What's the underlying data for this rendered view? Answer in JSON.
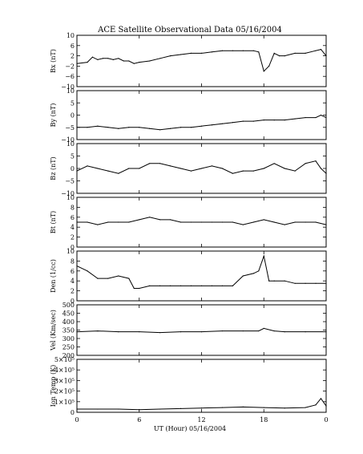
{
  "title": "ACE Satellite Observational Data   05/16/2004",
  "x_axis": {
    "label": "UT (Hour)   05/16/2004",
    "ticks": [
      "0",
      "6",
      "12",
      "18",
      "0"
    ]
  },
  "chart_data": [
    {
      "type": "line",
      "ylabel": "Bx (nT)",
      "ylim": [
        -10,
        10
      ],
      "yticks": [
        10,
        6,
        2,
        -2,
        -6,
        -10
      ],
      "ytick_labels": [
        "10",
        "6",
        "2",
        "−2",
        "−6",
        "−10"
      ],
      "x": [
        0,
        1,
        1.5,
        2,
        2.5,
        3,
        3.5,
        4,
        4.5,
        5,
        5.5,
        6,
        7,
        8,
        9,
        10,
        11,
        12,
        13,
        14,
        15,
        16,
        17,
        17.5,
        18,
        18.5,
        19,
        19.5,
        20,
        21,
        22,
        23,
        23.5,
        24
      ],
      "series": [
        {
          "values": [
            -1,
            -0.5,
            1.5,
            0.5,
            1,
            1,
            0.5,
            1,
            0,
            0,
            -1,
            -0.5,
            0,
            1,
            2,
            2.5,
            3,
            3,
            3.5,
            4,
            4,
            4,
            4,
            3.5,
            -4,
            -2,
            3,
            2,
            2,
            3,
            3,
            4,
            4.5,
            2
          ]
        }
      ]
    },
    {
      "type": "line",
      "ylabel": "By (nT)",
      "ylim": [
        -10,
        10
      ],
      "yticks": [
        10,
        5,
        0,
        -5,
        -10
      ],
      "ytick_labels": [
        "10",
        "5",
        "0",
        "−5",
        "−10"
      ],
      "x": [
        0,
        1,
        2,
        3,
        4,
        5,
        6,
        7,
        8,
        9,
        10,
        11,
        12,
        13,
        14,
        15,
        16,
        17,
        18,
        19,
        20,
        21,
        22,
        23,
        23.5,
        24
      ],
      "series": [
        {
          "values": [
            -5,
            -5,
            -4.5,
            -5,
            -5.5,
            -5,
            -5,
            -5.5,
            -6,
            -5.5,
            -5,
            -5,
            -4.5,
            -4,
            -3.5,
            -3,
            -2.5,
            -2.5,
            -2,
            -2,
            -2,
            -1.5,
            -1,
            -1,
            0,
            -1
          ]
        }
      ]
    },
    {
      "type": "line",
      "ylabel": "Bz (nT)",
      "ylim": [
        -10,
        10
      ],
      "yticks": [
        10,
        5,
        0,
        -5,
        -10
      ],
      "ytick_labels": [
        "10",
        "5",
        "0",
        "−5",
        "−10"
      ],
      "x": [
        0,
        1,
        2,
        3,
        4,
        5,
        6,
        7,
        8,
        9,
        10,
        11,
        12,
        13,
        14,
        15,
        16,
        17,
        18,
        19,
        20,
        21,
        22,
        23,
        23.5,
        24
      ],
      "series": [
        {
          "values": [
            -1,
            1,
            0,
            -1,
            -2,
            0,
            0,
            2,
            2,
            1,
            0,
            -1,
            0,
            1,
            0,
            -2,
            -1,
            -1,
            0,
            2,
            0,
            -1,
            2,
            3,
            0,
            -2
          ]
        }
      ]
    },
    {
      "type": "line",
      "ylabel": "Bt (nT)",
      "ylim": [
        0,
        10
      ],
      "yticks": [
        10,
        8,
        6,
        4,
        2,
        0
      ],
      "ytick_labels": [
        "10",
        "8",
        "6",
        "4",
        "2",
        "0"
      ],
      "x": [
        0,
        1,
        2,
        3,
        4,
        5,
        6,
        7,
        8,
        9,
        10,
        11,
        12,
        13,
        14,
        15,
        16,
        17,
        18,
        19,
        20,
        21,
        22,
        23,
        24
      ],
      "series": [
        {
          "values": [
            5,
            5,
            4.5,
            5,
            5,
            5,
            5.5,
            6,
            5.5,
            5.5,
            5,
            5,
            5,
            5,
            5,
            5,
            4.5,
            5,
            5.5,
            5,
            4.5,
            5,
            5,
            5,
            4.5
          ]
        }
      ]
    },
    {
      "type": "line",
      "ylabel": "Den (1/cc)",
      "ylim": [
        0,
        10
      ],
      "yticks": [
        10,
        8,
        6,
        4,
        2,
        0
      ],
      "ytick_labels": [
        "10",
        "8",
        "6",
        "4",
        "2",
        "0"
      ],
      "x": [
        0,
        1,
        2,
        3,
        4,
        5,
        5.5,
        6,
        7,
        8,
        9,
        10,
        11,
        12,
        13,
        14,
        15,
        16,
        17,
        17.5,
        18,
        18.5,
        19,
        20,
        21,
        22,
        23,
        24
      ],
      "series": [
        {
          "values": [
            7,
            6,
            4.5,
            4.5,
            5,
            4.5,
            2.5,
            2.5,
            3,
            3,
            3,
            3,
            3,
            3,
            3,
            3,
            3,
            5,
            5.5,
            6,
            9,
            4,
            4,
            4,
            3.5,
            3.5,
            3.5,
            3.5
          ]
        }
      ]
    },
    {
      "type": "line",
      "ylabel": "Vel (Km/sec)",
      "ylim": [
        200,
        500
      ],
      "yticks": [
        500,
        450,
        400,
        350,
        300,
        250,
        200
      ],
      "ytick_labels": [
        "500",
        "450",
        "400",
        "350",
        "300",
        "250",
        "200"
      ],
      "x": [
        0,
        2,
        4,
        6,
        8,
        10,
        12,
        14,
        16,
        17.5,
        18,
        19,
        20,
        22,
        24
      ],
      "series": [
        {
          "values": [
            340,
            345,
            340,
            340,
            335,
            340,
            340,
            345,
            345,
            345,
            360,
            345,
            340,
            340,
            340
          ]
        }
      ]
    },
    {
      "type": "line",
      "ylabel": "Ion Temp (K)",
      "ylim": [
        0,
        500000
      ],
      "yticks": [
        500000,
        400000,
        300000,
        200000,
        100000,
        0
      ],
      "ytick_labels": [
        "5×10⁵",
        "4×10⁵",
        "3×10⁵",
        "2×10⁵",
        "1×10⁵",
        "0"
      ],
      "x": [
        0,
        2,
        4,
        6,
        8,
        10,
        12,
        14,
        16,
        18,
        20,
        22,
        23,
        23.5,
        24
      ],
      "series": [
        {
          "values": [
            30000,
            30000,
            30000,
            25000,
            30000,
            35000,
            40000,
            45000,
            50000,
            45000,
            40000,
            45000,
            70000,
            130000,
            60000
          ]
        }
      ]
    }
  ]
}
